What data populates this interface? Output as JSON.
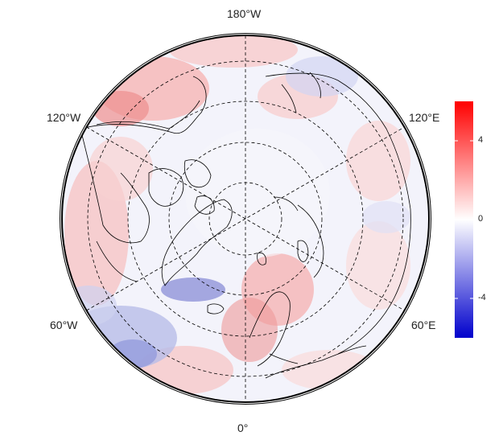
{
  "map": {
    "projection": "north-polar-stereographic",
    "lon_labels": {
      "top": "180°W",
      "bottom": "0°",
      "upper_left": "120°W",
      "upper_right": "120°E",
      "lower_left": "60°W",
      "lower_right": "60°E"
    }
  },
  "colorbar": {
    "range": [
      -6,
      6
    ],
    "ticks": [
      {
        "value": 4,
        "label": "4"
      },
      {
        "value": 0,
        "label": "0"
      },
      {
        "value": -4,
        "label": "-4"
      }
    ],
    "colors": {
      "low": "#0000cc",
      "mid": "#ffffff",
      "high": "#ff0000"
    }
  }
}
